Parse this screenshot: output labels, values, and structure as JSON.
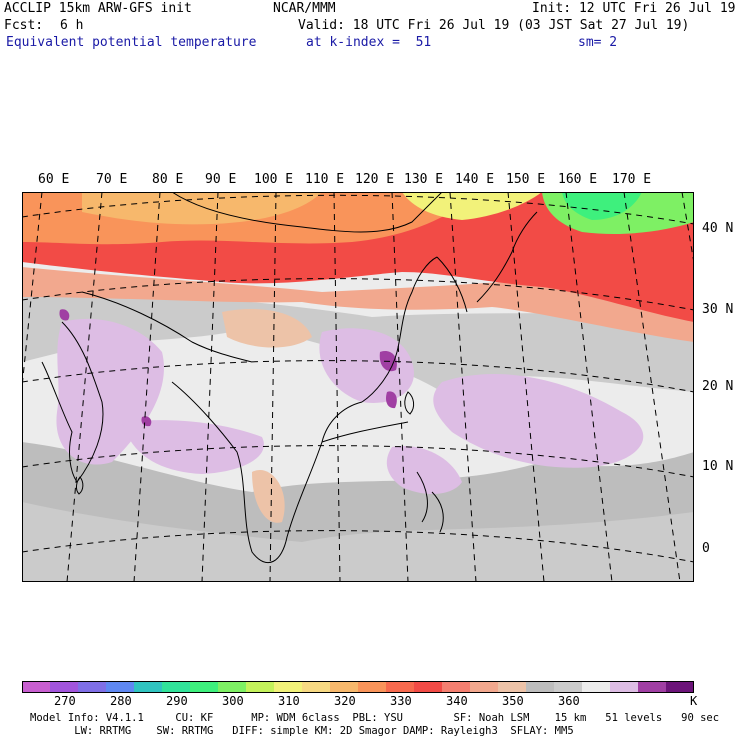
{
  "header": {
    "model": "ACCLIP 15km ARW-GFS init",
    "center": "NCAR/MMM",
    "init": "Init: 12 UTC Fri 26 Jul 19",
    "fcst_label": "Fcst:",
    "fcst_value": "6 h",
    "valid": "Valid: 18 UTC Fri 26 Jul 19 (03 JST Sat 27 Jul 19)",
    "field": "Equivalent potential temperature",
    "level": "at k-index =  51",
    "smooth": "sm= 2"
  },
  "map": {
    "lon_labels": [
      "60 E",
      "70 E",
      "80 E",
      "90 E",
      "100 E",
      "110 E",
      "120 E",
      "130 E",
      "140 E",
      "150 E",
      "160 E",
      "170 E"
    ],
    "lat_labels": [
      "40 N",
      "30 N",
      "20 N",
      "10 N",
      "0"
    ]
  },
  "colorbar": {
    "colors": [
      "#c85fd0",
      "#a255dc",
      "#7f6fe6",
      "#5f88f2",
      "#30c4c0",
      "#31e39a",
      "#3ef07d",
      "#7ef064",
      "#c4f25c",
      "#f2f27a",
      "#f7d983",
      "#f7b86c",
      "#f9945a",
      "#f76a4e",
      "#f24b46",
      "#f47f70",
      "#f2a88e",
      "#edc3a8",
      "#bdbdbd",
      "#cbcbcb",
      "#ececec",
      "#ddbde4",
      "#a03fa3",
      "#6c1479"
    ],
    "tick_labels": [
      "270",
      "280",
      "290",
      "300",
      "310",
      "320",
      "330",
      "340",
      "350",
      "360"
    ],
    "unit": "K",
    "legend_swatch_colors": [
      "#f24b46",
      "#f9945a",
      "#f2f27a",
      "#3ef07d",
      "#bdbdbd",
      "#ececec",
      "#ddbde4",
      "#6c1479"
    ]
  },
  "footer": {
    "line1": "Model Info: V4.1.1     CU: KF      MP: WDM 6class  PBL: YSU        SF: Noah LSM    15 km   51 levels   90 sec",
    "line2": "       LW: RRTMG    SW: RRTMG   DIFF: simple KM: 2D Smagor DAMP: Rayleigh3  SFLAY: MM5"
  }
}
